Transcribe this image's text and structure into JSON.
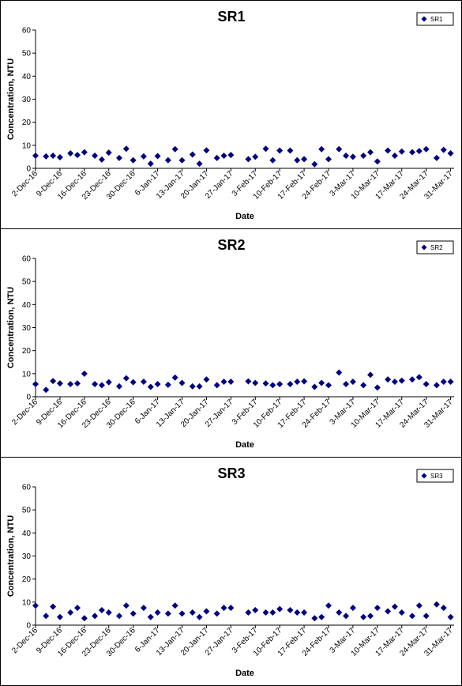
{
  "chart_data": [
    {
      "type": "scatter",
      "title": "SR1",
      "xlabel": "Date",
      "ylabel": "Concentration, NTU",
      "ylim": [
        0,
        60
      ],
      "yticks": [
        "0",
        "10",
        "20",
        "30",
        "40",
        "50",
        "60"
      ],
      "xlim": [
        "2016-12-02",
        "2017-04-01"
      ],
      "xticks": [
        "2-Dec-16",
        "9-Dec-16",
        "16-Dec-16",
        "23-Dec-16",
        "30-Dec-16",
        "6-Jan-17",
        "13-Jan-17",
        "20-Jan-17",
        "27-Jan-17",
        "3-Feb-17",
        "10-Feb-17",
        "17-Feb-17",
        "24-Feb-17",
        "3-Mar-17",
        "10-Mar-17",
        "17-Mar-17",
        "24-Mar-17",
        "31-Mar-17"
      ],
      "legend": "top-right",
      "series": [
        {
          "name": "SR1",
          "color": "#000080",
          "x": [
            "2016-12-02",
            "2016-12-05",
            "2016-12-07",
            "2016-12-09",
            "2016-12-12",
            "2016-12-14",
            "2016-12-16",
            "2016-12-19",
            "2016-12-21",
            "2016-12-23",
            "2016-12-26",
            "2016-12-28",
            "2016-12-30",
            "2017-01-02",
            "2017-01-04",
            "2017-01-06",
            "2017-01-09",
            "2017-01-11",
            "2017-01-13",
            "2017-01-16",
            "2017-01-18",
            "2017-01-20",
            "2017-01-23",
            "2017-01-25",
            "2017-01-27",
            "2017-02-01",
            "2017-02-03",
            "2017-02-06",
            "2017-02-08",
            "2017-02-10",
            "2017-02-13",
            "2017-02-15",
            "2017-02-17",
            "2017-02-20",
            "2017-02-22",
            "2017-02-24",
            "2017-02-27",
            "2017-03-01",
            "2017-03-03",
            "2017-03-06",
            "2017-03-08",
            "2017-03-10",
            "2017-03-13",
            "2017-03-15",
            "2017-03-17",
            "2017-03-20",
            "2017-03-22",
            "2017-03-24",
            "2017-03-27",
            "2017-03-29",
            "2017-03-31"
          ],
          "y": [
            5.5,
            5.2,
            5.5,
            4.8,
            6.5,
            5.8,
            7.0,
            5.5,
            3.8,
            6.8,
            4.5,
            8.5,
            3.5,
            5.2,
            2.0,
            5.3,
            3.5,
            8.3,
            3.5,
            6.0,
            2.0,
            7.8,
            4.5,
            5.5,
            5.8,
            4.0,
            5.0,
            8.5,
            3.5,
            7.7,
            7.7,
            3.5,
            4.0,
            1.8,
            8.3,
            4.0,
            8.3,
            5.5,
            5.0,
            5.5,
            7.0,
            3.0,
            7.7,
            5.5,
            7.3,
            7.0,
            7.5,
            8.3,
            4.5,
            8.0,
            6.5
          ]
        }
      ]
    },
    {
      "type": "scatter",
      "title": "SR2",
      "xlabel": "Date",
      "ylabel": "Concentration, NTU",
      "ylim": [
        0,
        60
      ],
      "yticks": [
        "0",
        "10",
        "20",
        "30",
        "40",
        "50",
        "60"
      ],
      "xlim": [
        "2016-12-02",
        "2017-04-01"
      ],
      "xticks": [
        "2-Dec-16",
        "9-Dec-16",
        "16-Dec-16",
        "23-Dec-16",
        "30-Dec-16",
        "6-Jan-17",
        "13-Jan-17",
        "20-Jan-17",
        "27-Jan-17",
        "3-Feb-17",
        "10-Feb-17",
        "17-Feb-17",
        "24-Feb-17",
        "3-Mar-17",
        "10-Mar-17",
        "17-Mar-17",
        "24-Mar-17",
        "31-Mar-17"
      ],
      "legend": "top-right",
      "series": [
        {
          "name": "SR2",
          "color": "#000080",
          "x": [
            "2016-12-02",
            "2016-12-05",
            "2016-12-07",
            "2016-12-09",
            "2016-12-12",
            "2016-12-14",
            "2016-12-16",
            "2016-12-19",
            "2016-12-21",
            "2016-12-23",
            "2016-12-26",
            "2016-12-28",
            "2016-12-30",
            "2017-01-02",
            "2017-01-04",
            "2017-01-06",
            "2017-01-09",
            "2017-01-11",
            "2017-01-13",
            "2017-01-16",
            "2017-01-18",
            "2017-01-20",
            "2017-01-23",
            "2017-01-25",
            "2017-01-27",
            "2017-02-01",
            "2017-02-03",
            "2017-02-06",
            "2017-02-08",
            "2017-02-10",
            "2017-02-13",
            "2017-02-15",
            "2017-02-17",
            "2017-02-20",
            "2017-02-22",
            "2017-02-24",
            "2017-02-27",
            "2017-03-01",
            "2017-03-03",
            "2017-03-06",
            "2017-03-08",
            "2017-03-10",
            "2017-03-13",
            "2017-03-15",
            "2017-03-17",
            "2017-03-20",
            "2017-03-22",
            "2017-03-24",
            "2017-03-27",
            "2017-03-29",
            "2017-03-31"
          ],
          "y": [
            5.5,
            3.0,
            6.8,
            5.8,
            5.5,
            5.8,
            10.0,
            5.5,
            5.0,
            6.3,
            4.5,
            8.0,
            6.3,
            6.5,
            4.3,
            5.5,
            5.2,
            8.3,
            6.0,
            4.5,
            4.5,
            7.5,
            5.0,
            6.5,
            6.5,
            6.7,
            6.0,
            5.8,
            5.0,
            5.5,
            5.5,
            6.5,
            6.7,
            4.3,
            6.0,
            5.0,
            10.5,
            5.5,
            6.5,
            5.0,
            9.5,
            4.0,
            7.5,
            6.5,
            7.0,
            7.5,
            8.5,
            5.5,
            5.0,
            6.5,
            6.5
          ]
        }
      ]
    },
    {
      "type": "scatter",
      "title": "SR3",
      "xlabel": "Date",
      "ylabel": "Concentration, NTU",
      "ylim": [
        0,
        60
      ],
      "yticks": [
        "0",
        "10",
        "20",
        "30",
        "40",
        "50",
        "60"
      ],
      "xlim": [
        "2016-12-02",
        "2017-04-01"
      ],
      "xticks": [
        "2-Dec-16",
        "9-Dec-16",
        "16-Dec-16",
        "23-Dec-16",
        "30-Dec-16",
        "6-Jan-17",
        "13-Jan-17",
        "20-Jan-17",
        "27-Jan-17",
        "3-Feb-17",
        "10-Feb-17",
        "17-Feb-17",
        "24-Feb-17",
        "3-Mar-17",
        "10-Mar-17",
        "17-Mar-17",
        "24-Mar-17",
        "31-Mar-17"
      ],
      "legend": "top-right",
      "series": [
        {
          "name": "SR3",
          "color": "#000080",
          "x": [
            "2016-12-02",
            "2016-12-05",
            "2016-12-07",
            "2016-12-09",
            "2016-12-12",
            "2016-12-14",
            "2016-12-16",
            "2016-12-19",
            "2016-12-21",
            "2016-12-23",
            "2016-12-26",
            "2016-12-28",
            "2016-12-30",
            "2017-01-02",
            "2017-01-04",
            "2017-01-06",
            "2017-01-09",
            "2017-01-11",
            "2017-01-13",
            "2017-01-16",
            "2017-01-18",
            "2017-01-20",
            "2017-01-23",
            "2017-01-25",
            "2017-01-27",
            "2017-02-01",
            "2017-02-03",
            "2017-02-06",
            "2017-02-08",
            "2017-02-10",
            "2017-02-13",
            "2017-02-15",
            "2017-02-17",
            "2017-02-20",
            "2017-02-22",
            "2017-02-24",
            "2017-02-27",
            "2017-03-01",
            "2017-03-03",
            "2017-03-06",
            "2017-03-08",
            "2017-03-10",
            "2017-03-13",
            "2017-03-15",
            "2017-03-17",
            "2017-03-20",
            "2017-03-22",
            "2017-03-24",
            "2017-03-27",
            "2017-03-29",
            "2017-03-31"
          ],
          "y": [
            8.5,
            4.0,
            8.0,
            3.5,
            5.5,
            7.5,
            3.0,
            4.0,
            6.5,
            5.5,
            4.0,
            8.5,
            5.0,
            7.5,
            3.5,
            5.5,
            5.0,
            8.5,
            5.0,
            5.5,
            3.5,
            6.0,
            5.0,
            7.5,
            7.5,
            5.5,
            6.5,
            5.5,
            5.5,
            7.0,
            6.5,
            5.5,
            5.5,
            3.0,
            3.5,
            8.5,
            5.5,
            4.0,
            7.5,
            3.5,
            4.0,
            7.5,
            6.0,
            8.0,
            5.5,
            4.0,
            8.5,
            4.0,
            9.0,
            7.5,
            3.5
          ]
        }
      ]
    }
  ]
}
